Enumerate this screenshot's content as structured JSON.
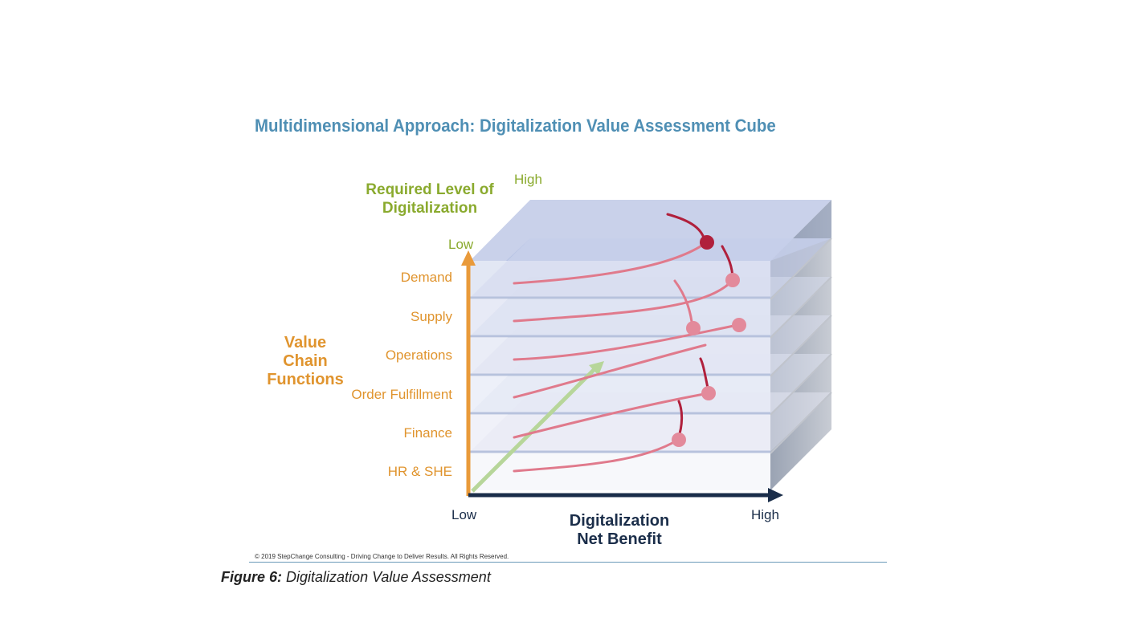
{
  "title": "Multidimensional Approach: Digitalization Value Assessment Cube",
  "vertical_axis": {
    "title_line1": "Required Level of",
    "title_line2": "Digitalization",
    "low": "Low",
    "high": "High"
  },
  "left_axis": {
    "title_line1": "Value",
    "title_line2": "Chain",
    "title_line3": "Functions",
    "rows": [
      "Demand",
      "Supply",
      "Operations",
      "Order Fulfillment",
      "Finance",
      "HR & SHE"
    ]
  },
  "horizontal_axis": {
    "low": "Low",
    "high": "High",
    "title_line1": "Digitalization",
    "title_line2": "Net Benefit"
  },
  "copyright": "© 2019 StepChange Consulting - Driving Change to Deliver Results. All Rights Reserved.",
  "caption": {
    "label": "Figure 6:",
    "text": "Digitalization Value Assessment"
  },
  "colors": {
    "title": "#4f8fb4",
    "green_axis": "#8aaa2e",
    "orange_axis": "#e0942e",
    "dark_axis": "#1b2e4a",
    "curve": "#e07a8c",
    "curve_dark": "#b0203c"
  }
}
